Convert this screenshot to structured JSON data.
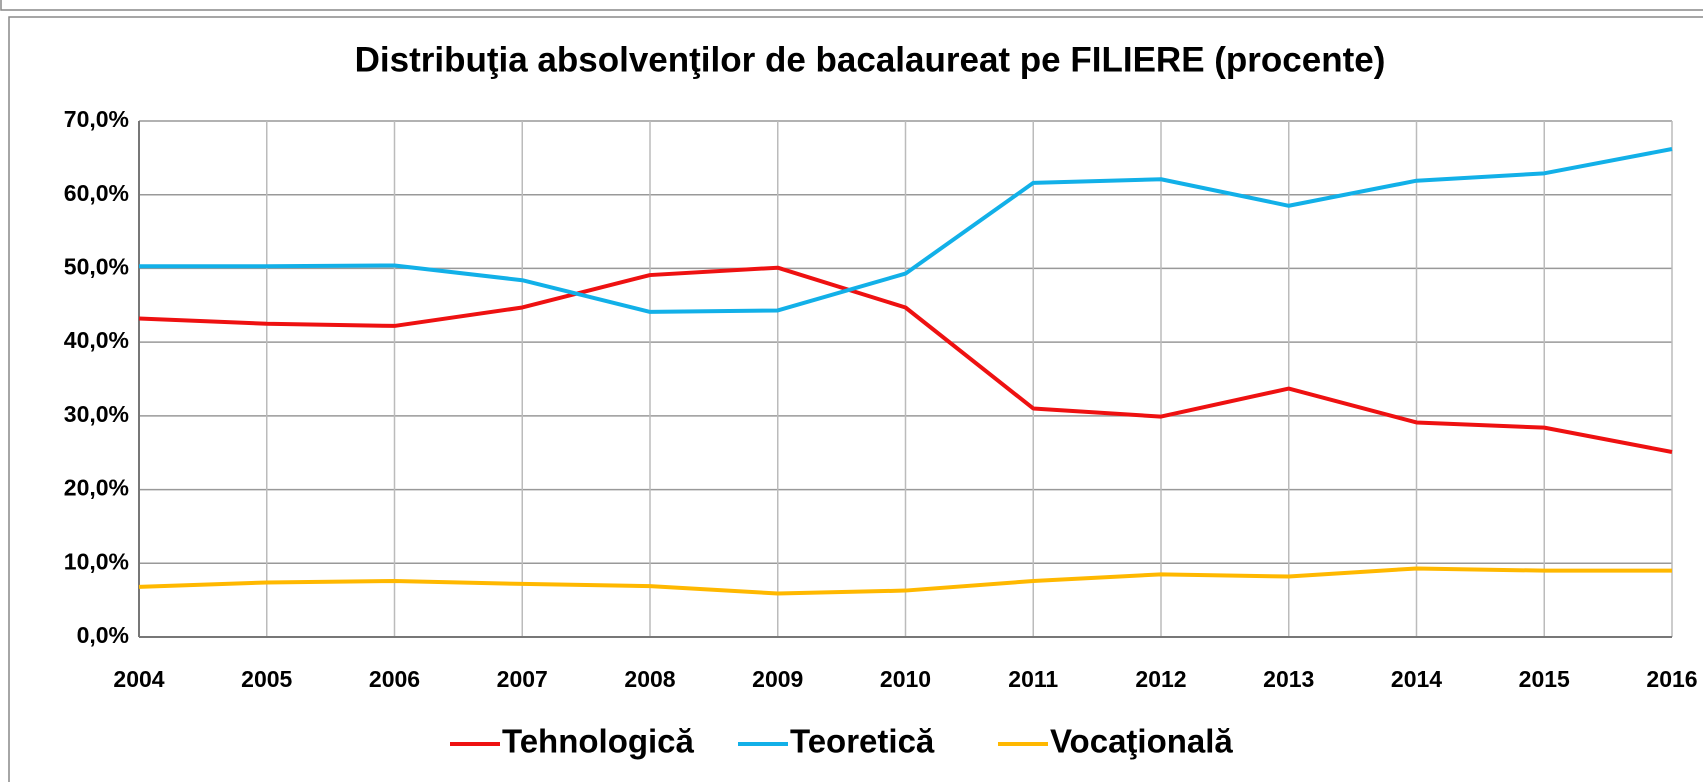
{
  "chart_data": {
    "type": "line",
    "title": "Distribuţia absolvenţilor de bacalaureat pe FILIERE (procente)",
    "categories": [
      "2004",
      "2005",
      "2006",
      "2007",
      "2008",
      "2009",
      "2010",
      "2011",
      "2012",
      "2013",
      "2014",
      "2015",
      "2016"
    ],
    "series": [
      {
        "name": "Tehnologică",
        "color": "#ee1111",
        "values": [
          43.2,
          42.5,
          42.2,
          44.7,
          49.1,
          50.1,
          44.7,
          31.0,
          29.9,
          33.7,
          29.1,
          28.4,
          25.1
        ]
      },
      {
        "name": "Teoretică",
        "color": "#12b0e8",
        "values": [
          50.3,
          50.3,
          50.4,
          48.4,
          44.1,
          44.3,
          49.3,
          61.6,
          62.1,
          58.5,
          61.9,
          62.9,
          66.2
        ]
      },
      {
        "name": "Vocaţională",
        "color": "#ffb800",
        "values": [
          6.8,
          7.4,
          7.6,
          7.2,
          6.9,
          5.9,
          6.3,
          7.6,
          8.5,
          8.2,
          9.3,
          9.0,
          9.0
        ]
      }
    ],
    "ylim": [
      0,
      70
    ],
    "yticks": [
      {
        "value": 0,
        "label": "0,0%"
      },
      {
        "value": 10,
        "label": "10,0%"
      },
      {
        "value": 20,
        "label": "20,0%"
      },
      {
        "value": 30,
        "label": "30,0%"
      },
      {
        "value": 40,
        "label": "40,0%"
      },
      {
        "value": 50,
        "label": "50,0%"
      },
      {
        "value": 60,
        "label": "60,0%"
      },
      {
        "value": 70,
        "label": "70,0%"
      }
    ],
    "grid": true,
    "legend": "bottom"
  }
}
